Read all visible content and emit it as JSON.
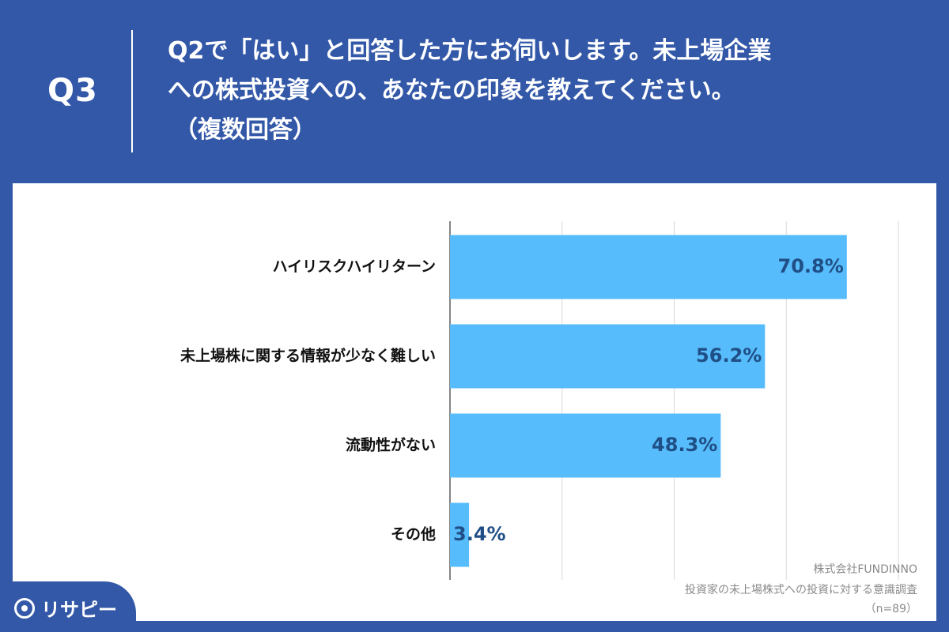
{
  "header": {
    "qnum": "Q3",
    "question_lines": [
      "Q2で「はい」と回答した方にお伺いします。未上場企業",
      "への株式投資への、あなたの印象を教えてください。",
      "（複数回答）"
    ]
  },
  "chart_data": {
    "type": "bar",
    "orientation": "horizontal",
    "categories": [
      "ハイリスクハイリターン",
      "未上場株に関する情報が少なく難しい",
      "流動性がない",
      "その他"
    ],
    "values": [
      70.8,
      56.2,
      48.3,
      3.4
    ],
    "value_labels": [
      "70.8%",
      "56.2%",
      "48.3%",
      "3.4%"
    ],
    "xlim": [
      0,
      80
    ],
    "grid": true,
    "bar_color": "#57bcfb",
    "label_color": "#1f4f86"
  },
  "source": {
    "company": "株式会社FUNDINNO",
    "survey": "投資家の未上場株式への投資に対する意識調査",
    "n": "（n=89）"
  },
  "brand": {
    "logo_text": "リサピー"
  }
}
